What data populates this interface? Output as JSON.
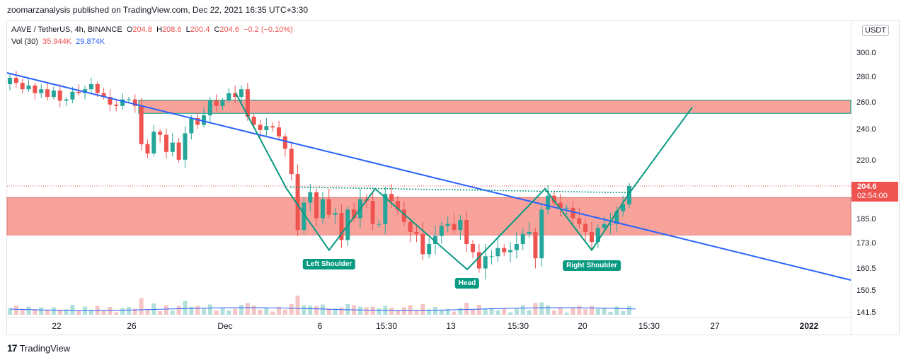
{
  "header": {
    "text": "zoomarzanalysis published on TradingView.com, Dec 22, 2021 16:35 UTC+3:30"
  },
  "legend": {
    "symbol": "AAVE / TetherUS, 4h, BINANCE",
    "open_label": "O",
    "open": "204.8",
    "high_label": "H",
    "high": "208.6",
    "low_label": "L",
    "low": "200.4",
    "close_label": "C",
    "close": "204.6",
    "change": "−0.2 (−0.10%)",
    "vol_label": "Vol (30)",
    "vol_value": "35.944K",
    "vol_ma": "29.874K"
  },
  "currency_button": "USDT",
  "price_tag": {
    "price": "204.6",
    "countdown": "02:54:00"
  },
  "footer": {
    "brand": "TradingView",
    "logo_text": "17"
  },
  "labels": {
    "left_shoulder": "Left Shoulder",
    "head": "Head",
    "right_shoulder": "Right Shoulder"
  },
  "colors": {
    "up": "#26a69a",
    "down": "#ef5350",
    "zone": "#f7a39b",
    "trendline": "#2962ff",
    "pattern": "#089981",
    "vol_up": "#b2dfdb",
    "vol_down": "#f5c4c4"
  },
  "chart_data": {
    "type": "candlestick",
    "symbol": "AAVE / TetherUS",
    "timeframe": "4h",
    "y_ticks": [
      300.0,
      280.0,
      260.0,
      240.0,
      220.0,
      185.0,
      173.0,
      160.5,
      150.5,
      141.5
    ],
    "y_tick_labels": [
      "300.0",
      "280.0",
      "260.0",
      "240.0",
      "220.0",
      "185.0",
      "173.0",
      "160.5",
      "150.5",
      "141.5"
    ],
    "x_tick_labels": [
      "22",
      "26",
      "Dec",
      "6",
      "15:30",
      "13",
      "15:30",
      "20",
      "15:30",
      "27",
      "2022"
    ],
    "last_price": 204.6,
    "resistance_zone": [
      252.5,
      262.5
    ],
    "support_zone": [
      177.5,
      198.0
    ],
    "neckline": 204.0,
    "price_path": [
      275,
      280,
      276,
      271,
      274,
      268,
      271,
      265,
      270,
      262,
      263,
      269,
      268,
      271,
      275,
      268,
      265,
      259,
      258,
      263,
      263,
      258,
      231,
      225,
      239,
      237,
      226,
      232,
      221,
      238,
      249,
      244,
      251,
      262,
      258,
      262,
      268,
      265,
      271,
      250,
      244,
      240,
      243,
      242,
      236,
      228,
      212,
      180,
      195,
      201,
      186,
      197,
      188,
      189,
      175,
      191,
      186,
      197,
      196,
      183,
      183,
      200,
      196,
      191,
      184,
      179,
      178,
      168,
      173,
      177,
      182,
      183,
      180,
      185,
      173,
      169,
      161,
      167,
      167,
      171,
      169,
      170,
      173,
      178,
      179,
      166,
      191,
      199,
      195,
      192,
      192,
      186,
      183,
      179,
      174,
      181,
      183,
      183,
      190,
      194,
      204.6
    ],
    "pattern": {
      "left_shoulder_low": 170,
      "head_low": 160.5,
      "right_shoulder_low": 170,
      "target": 257
    }
  }
}
